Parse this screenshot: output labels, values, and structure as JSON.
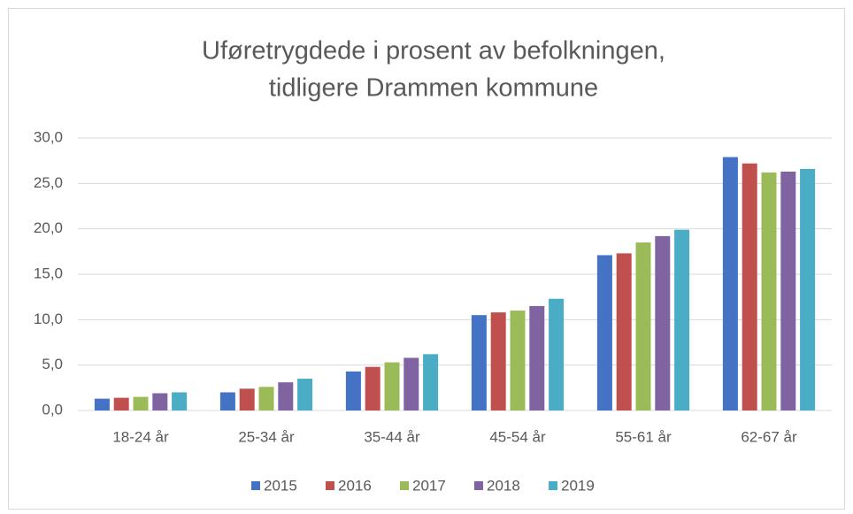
{
  "chart_data": {
    "type": "bar",
    "title": [
      "Uføretrygdede i prosent av befolkningen,",
      "tidligere Drammen kommune"
    ],
    "categories": [
      "18-24 år",
      "25-34 år",
      "35-44 år",
      "45-54 år",
      "55-61 år",
      "62-67 år"
    ],
    "series": [
      {
        "name": "2015",
        "color": "#4472c4",
        "values": [
          1.3,
          2.0,
          4.3,
          10.5,
          17.1,
          27.9
        ]
      },
      {
        "name": "2016",
        "color": "#c0504d",
        "values": [
          1.4,
          2.4,
          4.8,
          10.8,
          17.3,
          27.2
        ]
      },
      {
        "name": "2017",
        "color": "#9bbb59",
        "values": [
          1.5,
          2.6,
          5.3,
          11.0,
          18.5,
          26.2
        ]
      },
      {
        "name": "2018",
        "color": "#8064a2",
        "values": [
          1.9,
          3.1,
          5.8,
          11.5,
          19.2,
          26.3
        ]
      },
      {
        "name": "2019",
        "color": "#4bacc6",
        "values": [
          2.0,
          3.5,
          6.2,
          12.3,
          19.9,
          26.6
        ]
      }
    ],
    "ylim": [
      0,
      30
    ],
    "yticks": [
      {
        "value": 0,
        "label": "0,0"
      },
      {
        "value": 5,
        "label": "5,0"
      },
      {
        "value": 10,
        "label": "10,0"
      },
      {
        "value": 15,
        "label": "15,0"
      },
      {
        "value": 20,
        "label": "20,0"
      },
      {
        "value": 25,
        "label": "25,0"
      },
      {
        "value": 30,
        "label": "30,0"
      }
    ],
    "grid": true,
    "legend": "bottom"
  }
}
